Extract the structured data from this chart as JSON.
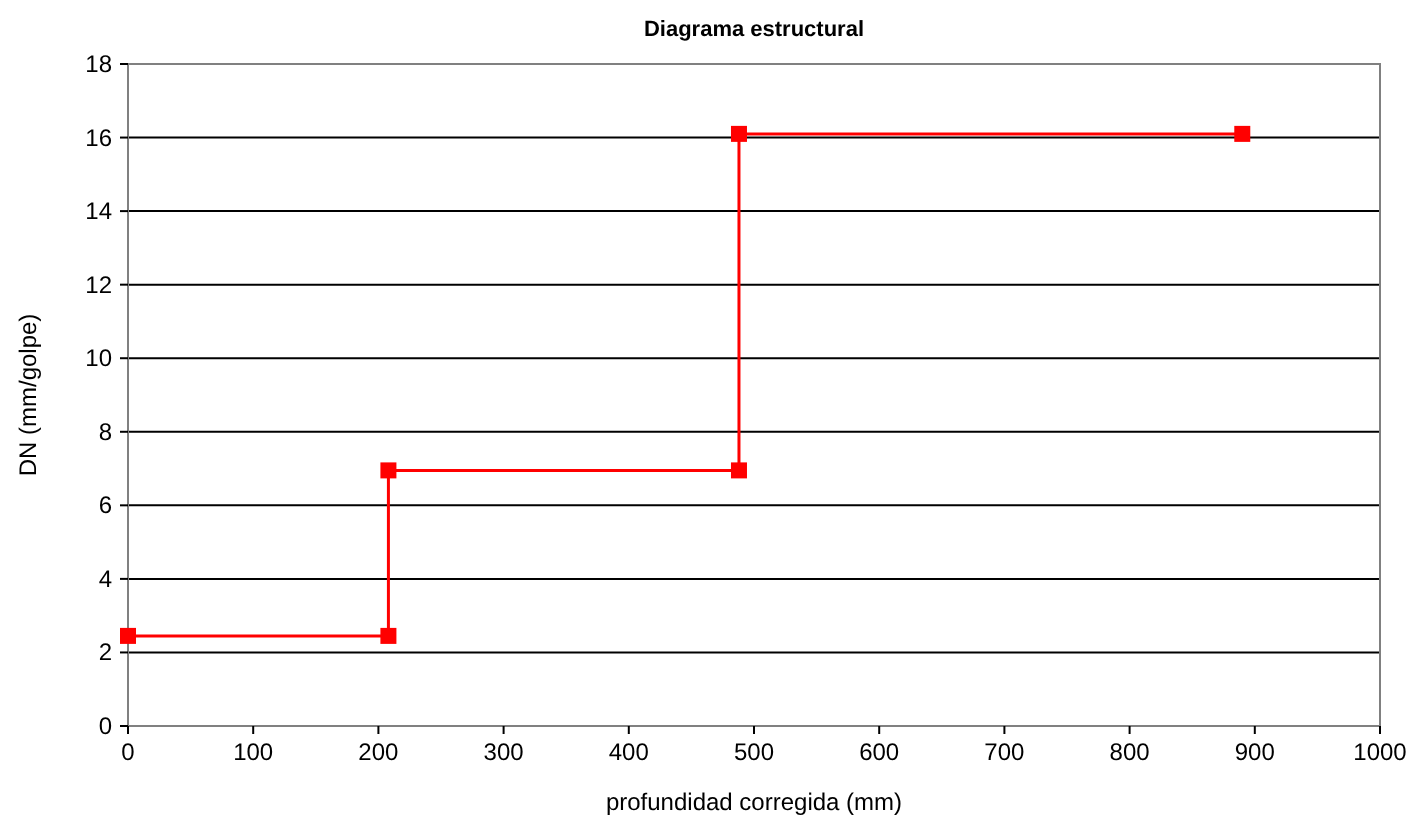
{
  "chart_data": {
    "type": "line",
    "title": "Diagrama estructural",
    "xlabel": "profundidad corregida (mm)",
    "ylabel": "DN (mm/golpe)",
    "x": [
      0,
      208,
      208,
      488,
      488,
      890
    ],
    "series": [
      {
        "color": "#ff0000",
        "values": [
          2.45,
          2.45,
          6.95,
          6.95,
          16.1,
          16.1
        ]
      }
    ],
    "xlim": [
      0,
      1000
    ],
    "xticks": [
      0,
      100,
      200,
      300,
      400,
      500,
      600,
      700,
      800,
      900,
      1000
    ],
    "ylim": [
      0,
      18
    ],
    "yticks": [
      0,
      2,
      4,
      6,
      8,
      10,
      12,
      14,
      16,
      18
    ],
    "grid": "y",
    "marker": "square",
    "line_style": "solid"
  }
}
